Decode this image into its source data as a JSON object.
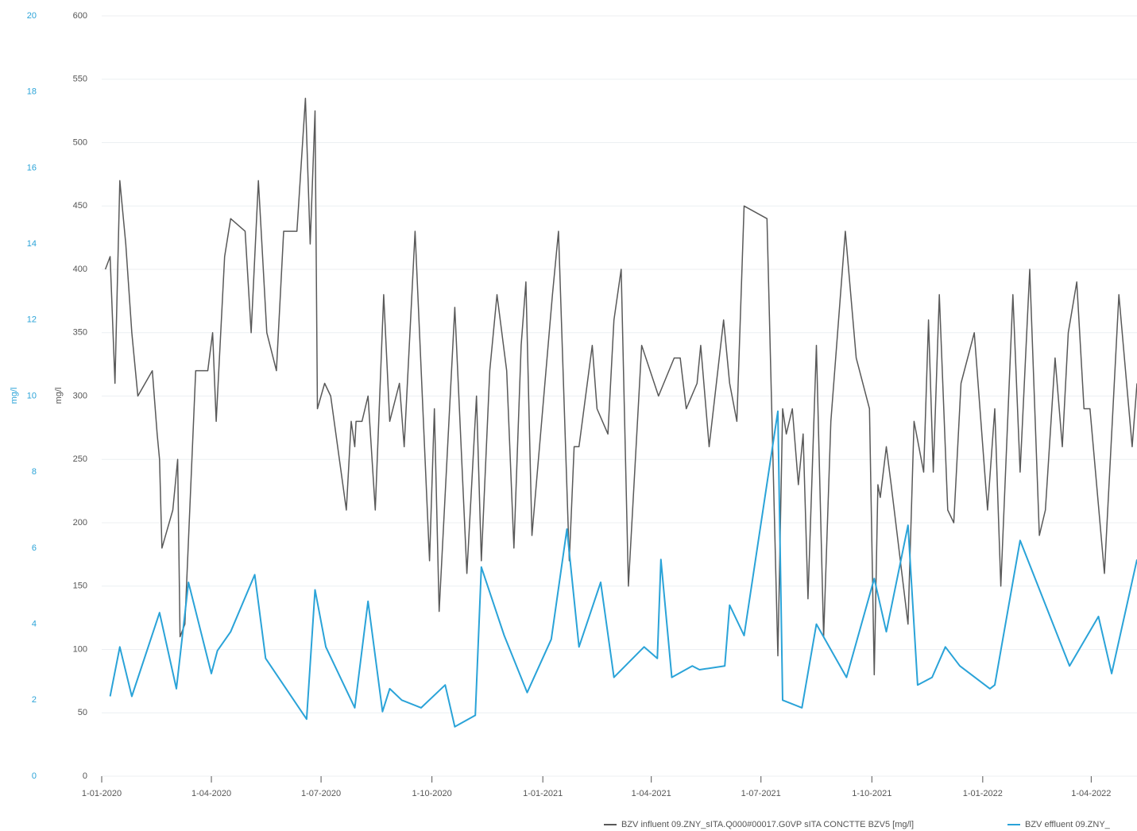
{
  "chart_data": {
    "type": "line",
    "y_axis_label": "mg/l",
    "y2_axis_label": "mg/l",
    "y2_color": "#2aa3d8",
    "grid": true,
    "legend": "bottom-right",
    "xlim": [
      "2020-01-01",
      "2022-05-09"
    ],
    "xticks": [
      {
        "value": "2020-01-01",
        "label": "1-01-2020"
      },
      {
        "value": "2020-04-01",
        "label": "1-04-2020"
      },
      {
        "value": "2020-07-01",
        "label": "1-07-2020"
      },
      {
        "value": "2020-10-01",
        "label": "1-10-2020"
      },
      {
        "value": "2021-01-01",
        "label": "1-01-2021"
      },
      {
        "value": "2021-04-01",
        "label": "1-04-2021"
      },
      {
        "value": "2021-07-01",
        "label": "1-07-2021"
      },
      {
        "value": "2021-10-01",
        "label": "1-10-2021"
      },
      {
        "value": "2022-01-01",
        "label": "1-01-2022"
      },
      {
        "value": "2022-04-01",
        "label": "1-04-2022"
      }
    ],
    "ylim": [
      0,
      600
    ],
    "yticks": [
      0,
      50,
      100,
      150,
      200,
      250,
      300,
      350,
      400,
      450,
      500,
      550,
      600
    ],
    "y2lim": [
      0,
      20
    ],
    "y2ticks": [
      0,
      2,
      4,
      6,
      8,
      10,
      12,
      14,
      16,
      18,
      20
    ],
    "series": [
      {
        "name": "BZV influent 09.ZNY_sITA.Q000#00017.G0VP sITA CONCTTE BZV5 [mg/l]",
        "color": "#595959",
        "axis": "y",
        "x": [
          "2020-01-04",
          "2020-01-08",
          "2020-01-12",
          "2020-01-16",
          "2020-01-21",
          "2020-01-26",
          "2020-01-31",
          "2020-02-12",
          "2020-02-16",
          "2020-02-18",
          "2020-02-20",
          "2020-02-29",
          "2020-03-04",
          "2020-03-06",
          "2020-03-10",
          "2020-03-19",
          "2020-03-29",
          "2020-04-02",
          "2020-04-05",
          "2020-04-12",
          "2020-04-17",
          "2020-04-29",
          "2020-05-04",
          "2020-05-10",
          "2020-05-17",
          "2020-05-25",
          "2020-05-31",
          "2020-06-11",
          "2020-06-18",
          "2020-06-22",
          "2020-06-26",
          "2020-06-28",
          "2020-07-04",
          "2020-07-09",
          "2020-07-22",
          "2020-07-26",
          "2020-07-29",
          "2020-07-30",
          "2020-08-04",
          "2020-08-09",
          "2020-08-15",
          "2020-08-22",
          "2020-08-27",
          "2020-09-04",
          "2020-09-08",
          "2020-09-17",
          "2020-09-29",
          "2020-10-03",
          "2020-10-07",
          "2020-10-20",
          "2020-10-30",
          "2020-11-07",
          "2020-11-11",
          "2020-11-18",
          "2020-11-24",
          "2020-12-02",
          "2020-12-08",
          "2020-12-14",
          "2020-12-18",
          "2020-12-23",
          "2021-01-09",
          "2021-01-14",
          "2021-01-23",
          "2021-01-27",
          "2021-01-31",
          "2021-02-11",
          "2021-02-15",
          "2021-02-24",
          "2021-03-01",
          "2021-03-07",
          "2021-03-13",
          "2021-03-24",
          "2021-04-07",
          "2021-04-20",
          "2021-04-25",
          "2021-04-30",
          "2021-05-09",
          "2021-05-12",
          "2021-05-19",
          "2021-05-31",
          "2021-06-05",
          "2021-06-11",
          "2021-06-17",
          "2021-07-06",
          "2021-07-15",
          "2021-07-19",
          "2021-07-22",
          "2021-07-27",
          "2021-08-01",
          "2021-08-05",
          "2021-08-09",
          "2021-08-16",
          "2021-08-22",
          "2021-08-28",
          "2021-09-09",
          "2021-09-18",
          "2021-09-29",
          "2021-10-03",
          "2021-10-06",
          "2021-10-08",
          "2021-10-13",
          "2021-10-17",
          "2021-10-31",
          "2021-11-05",
          "2021-11-13",
          "2021-11-17",
          "2021-11-21",
          "2021-11-26",
          "2021-12-03",
          "2021-12-08",
          "2021-12-14",
          "2021-12-25",
          "2022-01-05",
          "2022-01-11",
          "2022-01-16",
          "2022-01-26",
          "2022-02-01",
          "2022-02-09",
          "2022-02-17",
          "2022-02-22",
          "2022-03-02",
          "2022-03-08",
          "2022-03-13",
          "2022-03-20",
          "2022-03-26",
          "2022-03-31",
          "2022-04-12",
          "2022-04-24",
          "2022-05-05",
          "2022-05-09"
        ],
        "values": [
          400,
          410,
          310,
          470,
          420,
          350,
          300,
          320,
          270,
          250,
          180,
          210,
          250,
          110,
          120,
          320,
          320,
          350,
          280,
          410,
          440,
          430,
          350,
          470,
          350,
          320,
          430,
          430,
          535,
          420,
          525,
          290,
          310,
          300,
          210,
          280,
          260,
          280,
          280,
          300,
          210,
          380,
          280,
          310,
          260,
          430,
          170,
          290,
          130,
          370,
          160,
          300,
          170,
          320,
          380,
          320,
          180,
          340,
          390,
          190,
          380,
          430,
          170,
          260,
          260,
          340,
          290,
          270,
          360,
          400,
          150,
          340,
          300,
          330,
          330,
          290,
          310,
          340,
          260,
          360,
          310,
          280,
          450,
          440,
          95,
          290,
          270,
          290,
          230,
          270,
          140,
          340,
          110,
          280,
          430,
          330,
          290,
          80,
          230,
          220,
          260,
          230,
          120,
          280,
          240,
          360,
          240,
          380,
          210,
          200,
          310,
          350,
          210,
          290,
          150,
          380,
          240,
          400,
          190,
          210,
          330,
          260,
          350,
          390,
          290,
          290,
          160,
          380,
          260,
          310
        ]
      },
      {
        "name": "BZV effluent 09.ZNY_",
        "color": "#2aa3d8",
        "axis": "y2",
        "x": [
          "2020-01-08",
          "2020-01-16",
          "2020-01-26",
          "2020-02-18",
          "2020-03-03",
          "2020-03-13",
          "2020-04-01",
          "2020-04-06",
          "2020-04-17",
          "2020-05-07",
          "2020-05-16",
          "2020-06-19",
          "2020-06-26",
          "2020-07-05",
          "2020-07-29",
          "2020-08-09",
          "2020-08-21",
          "2020-08-27",
          "2020-09-06",
          "2020-09-22",
          "2020-10-12",
          "2020-10-20",
          "2020-11-06",
          "2020-11-11",
          "2020-11-30",
          "2020-12-19",
          "2021-01-08",
          "2021-01-21",
          "2021-01-31",
          "2021-02-18",
          "2021-03-01",
          "2021-03-26",
          "2021-04-06",
          "2021-04-09",
          "2021-04-18",
          "2021-05-05",
          "2021-05-11",
          "2021-06-01",
          "2021-06-05",
          "2021-06-17",
          "2021-07-15",
          "2021-07-19",
          "2021-08-04",
          "2021-08-16",
          "2021-09-10",
          "2021-10-03",
          "2021-10-13",
          "2021-10-31",
          "2021-11-08",
          "2021-11-20",
          "2021-12-01",
          "2021-12-13",
          "2022-01-07",
          "2022-01-11",
          "2022-02-01",
          "2022-03-14",
          "2022-04-07",
          "2022-04-18",
          "2022-05-09"
        ],
        "values": [
          2.1,
          3.4,
          2.1,
          4.3,
          2.3,
          5.1,
          2.7,
          3.3,
          3.8,
          5.3,
          3.1,
          1.5,
          4.9,
          3.4,
          1.8,
          4.6,
          1.7,
          2.3,
          2.0,
          1.8,
          2.4,
          1.3,
          1.6,
          5.5,
          3.7,
          2.2,
          3.6,
          6.5,
          3.4,
          5.1,
          2.6,
          3.4,
          3.1,
          5.7,
          2.6,
          2.9,
          2.8,
          2.9,
          4.5,
          3.7,
          9.6,
          2.0,
          1.8,
          4.0,
          2.6,
          5.2,
          3.8,
          6.6,
          2.4,
          2.6,
          3.4,
          2.9,
          2.3,
          2.4,
          6.2,
          2.9,
          4.2,
          2.7,
          5.7
        ]
      }
    ]
  }
}
